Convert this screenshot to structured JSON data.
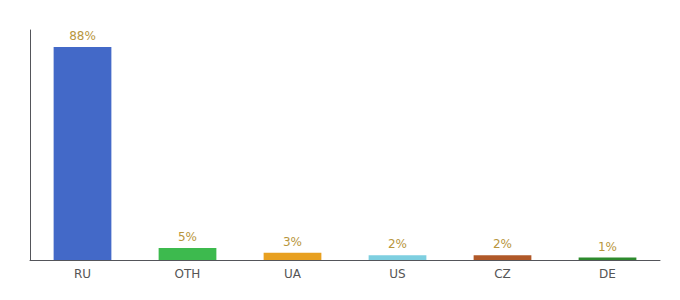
{
  "chart_data": {
    "type": "bar",
    "categories": [
      "RU",
      "OTH",
      "UA",
      "US",
      "CZ",
      "DE"
    ],
    "values": [
      88,
      5,
      3,
      2,
      2,
      1
    ],
    "value_labels": [
      "88%",
      "5%",
      "3%",
      "2%",
      "2%",
      "1%"
    ],
    "data_labels": true,
    "colors": [
      "#4369c8",
      "#3dba4e",
      "#e8a020",
      "#7ecfe0",
      "#b05828",
      "#2d8a2d"
    ],
    "ylim": [
      0,
      95
    ],
    "tick_labels": "x",
    "grid": false
  }
}
